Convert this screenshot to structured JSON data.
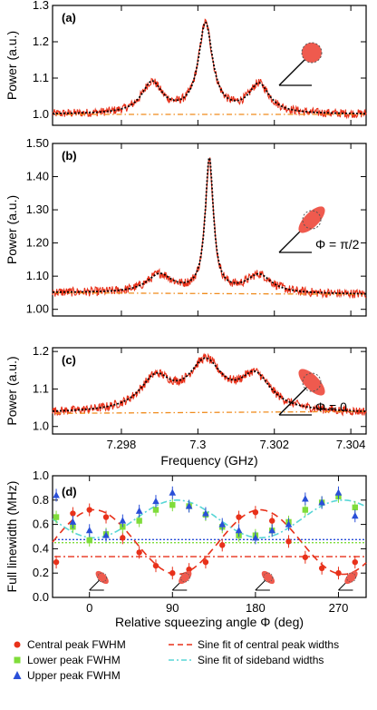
{
  "chart_data": [
    {
      "type": "line",
      "panel_label": "(a)",
      "ylabel": "Power (a.u.)",
      "xlim": [
        7.2962,
        7.3044
      ],
      "ylim": [
        0.97,
        1.3
      ],
      "yticks": [
        1.0,
        1.1,
        1.2,
        1.3
      ],
      "ytick_labels": [
        "1.0",
        "1.1",
        "1.2",
        "1.3"
      ],
      "peaks": [
        {
          "x": 7.2988,
          "height": 0.085,
          "width": 0.00065
        },
        {
          "x": 7.3002,
          "height": 0.245,
          "width": 0.00045
        },
        {
          "x": 7.3016,
          "height": 0.08,
          "width": 0.00065
        }
      ],
      "baseline_left": 1.0,
      "baseline_right": 1.0,
      "noise_amplitude": 0.012,
      "background_line": {
        "start": 1.0,
        "end": 1.0
      },
      "inset": {
        "shape": "circle",
        "annotation": ""
      },
      "colors": {
        "data": "#e8311a",
        "fit": "#000000",
        "background": "#f08c1e"
      }
    },
    {
      "type": "line",
      "panel_label": "(b)",
      "ylabel": "Power (a.u.)",
      "xlim": [
        7.2962,
        7.3044
      ],
      "ylim": [
        0.98,
        1.5
      ],
      "yticks": [
        1.0,
        1.1,
        1.2,
        1.3,
        1.4,
        1.5
      ],
      "ytick_labels": [
        "1.00",
        "1.10",
        "1.20",
        "1.30",
        "1.40",
        "1.50"
      ],
      "peaks": [
        {
          "x": 7.299,
          "height": 0.055,
          "width": 0.0008
        },
        {
          "x": 7.3003,
          "height": 0.4,
          "width": 0.00026
        },
        {
          "x": 7.3016,
          "height": 0.055,
          "width": 0.0008
        }
      ],
      "baseline_left": 1.05,
      "baseline_right": 1.045,
      "noise_amplitude": 0.014,
      "background_line": {
        "start": 1.05,
        "end": 1.045
      },
      "inset": {
        "shape": "ellipse-tilted",
        "annotation": "Φ = π/2"
      },
      "colors": {
        "data": "#e8311a",
        "fit": "#000000",
        "background": "#f08c1e"
      }
    },
    {
      "type": "line",
      "panel_label": "(c)",
      "ylabel": "Power (a.u.)",
      "xlabel": "Frequency (GHz)",
      "xlim": [
        7.2962,
        7.3044
      ],
      "ylim": [
        0.98,
        1.21
      ],
      "yticks": [
        1.0,
        1.1,
        1.2
      ],
      "ytick_labels": [
        "1.0",
        "1.1",
        "1.2"
      ],
      "xticks": [
        7.298,
        7.3,
        7.302,
        7.304
      ],
      "xtick_labels": [
        "7.298",
        "7.3",
        "7.302",
        "7.304"
      ],
      "peaks": [
        {
          "x": 7.2989,
          "height": 0.085,
          "width": 0.001
        },
        {
          "x": 7.3002,
          "height": 0.125,
          "width": 0.0011
        },
        {
          "x": 7.3015,
          "height": 0.09,
          "width": 0.001
        }
      ],
      "baseline_left": 1.035,
      "baseline_right": 1.035,
      "noise_amplitude": 0.012,
      "background_line": {
        "start": 1.035,
        "end": 1.04
      },
      "inset": {
        "shape": "ellipse-tilted-other",
        "annotation": "Φ = 0"
      },
      "colors": {
        "data": "#e8311a",
        "fit": "#000000",
        "background": "#f08c1e"
      }
    },
    {
      "type": "scatter",
      "panel_label": "(d)",
      "xlabel": "Relative squeezing angle Φ (deg)",
      "ylabel": "Full linewidth (MHz)",
      "xlim": [
        -40,
        300
      ],
      "ylim": [
        0,
        1.0
      ],
      "xticks": [
        0,
        90,
        180,
        270
      ],
      "xtick_labels": [
        "0",
        "90",
        "180",
        "270"
      ],
      "yticks": [
        0.0,
        0.2,
        0.4,
        0.6,
        0.8,
        1.0
      ],
      "ytick_labels": [
        "0.0",
        "0.2",
        "0.4",
        "0.6",
        "0.8",
        "1.0"
      ],
      "series": [
        {
          "name": "Central peak FWHM",
          "marker": "circle",
          "color": "#e8311a",
          "x": [
            -36,
            -18,
            0,
            18,
            36,
            54,
            72,
            90,
            108,
            126,
            144,
            162,
            180,
            198,
            216,
            234,
            252,
            270,
            288
          ],
          "y": [
            0.29,
            0.69,
            0.72,
            0.66,
            0.49,
            0.37,
            0.26,
            0.2,
            0.23,
            0.29,
            0.43,
            0.66,
            0.7,
            0.63,
            0.46,
            0.33,
            0.24,
            0.2,
            0.29
          ]
        },
        {
          "name": "Lower peak FWHM",
          "marker": "square",
          "color": "#7fdc3a",
          "x": [
            -36,
            -18,
            0,
            18,
            36,
            54,
            72,
            90,
            108,
            126,
            144,
            162,
            180,
            198,
            216,
            234,
            252,
            270,
            288
          ],
          "y": [
            0.66,
            0.58,
            0.47,
            0.52,
            0.58,
            0.63,
            0.72,
            0.76,
            0.75,
            0.68,
            0.58,
            0.51,
            0.51,
            0.55,
            0.62,
            0.72,
            0.78,
            0.83,
            0.74
          ]
        },
        {
          "name": "Upper peak FWHM",
          "marker": "triangle",
          "color": "#2a4fd8",
          "x": [
            -36,
            -18,
            0,
            18,
            36,
            54,
            72,
            90,
            108,
            126,
            144,
            162,
            180,
            198,
            216,
            234,
            252,
            270,
            288
          ],
          "y": [
            0.84,
            0.62,
            0.55,
            0.51,
            0.63,
            0.71,
            0.79,
            0.86,
            0.75,
            0.69,
            0.6,
            0.55,
            0.49,
            0.55,
            0.6,
            0.81,
            0.78,
            0.86,
            0.67
          ]
        },
        {
          "name": "Sine fit of central peak widths",
          "style": "dashed",
          "color": "#e8311a",
          "fit": {
            "mean": 0.455,
            "amp": 0.265,
            "period": 180,
            "peak_at": 5
          }
        },
        {
          "name": "Sine fit of sideband widths",
          "style": "dash-dot",
          "color": "#58d6d6",
          "fit": {
            "mean": 0.645,
            "amp": 0.155,
            "period": 180,
            "peak_at": 95
          }
        }
      ],
      "reference_lines": [
        {
          "y": 0.475,
          "color": "#2a4fd8",
          "style": "dotted"
        },
        {
          "y": 0.45,
          "color": "#7fdc3a",
          "style": "dotted"
        },
        {
          "y": 0.335,
          "color": "#e8311a",
          "style": "dash-dot"
        }
      ],
      "inset_icons_at": [
        0,
        90,
        180,
        270
      ],
      "legend_placement": "bottom"
    }
  ]
}
